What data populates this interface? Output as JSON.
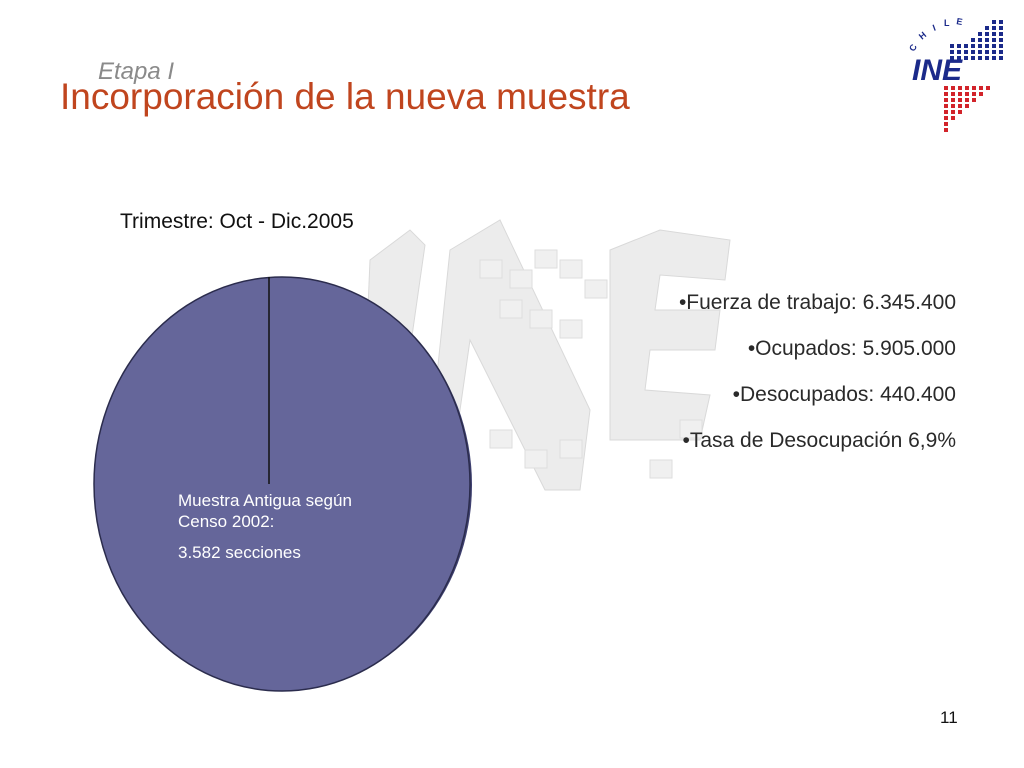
{
  "slide": {
    "subtitle": "Etapa I",
    "title": "Incorporación de la nueva muestra",
    "period": "Trimestre: Oct - Dic.2005",
    "page_number": "11"
  },
  "logo": {
    "text": "INE",
    "country": "CHILE",
    "colors": {
      "blue": "#1b2a8a",
      "red": "#d2232a"
    }
  },
  "pie": {
    "fill": "#65669a",
    "label_line1": "Muestra Antigua según",
    "label_line2": "Censo 2002:",
    "label_line3": "3.582 secciones"
  },
  "stats": [
    "•Fuerza de trabajo: 6.345.400",
    "•Ocupados: 5.905.000",
    "•Desocupados: 440.400",
    "•Tasa de Desocupación 6,9%"
  ]
}
